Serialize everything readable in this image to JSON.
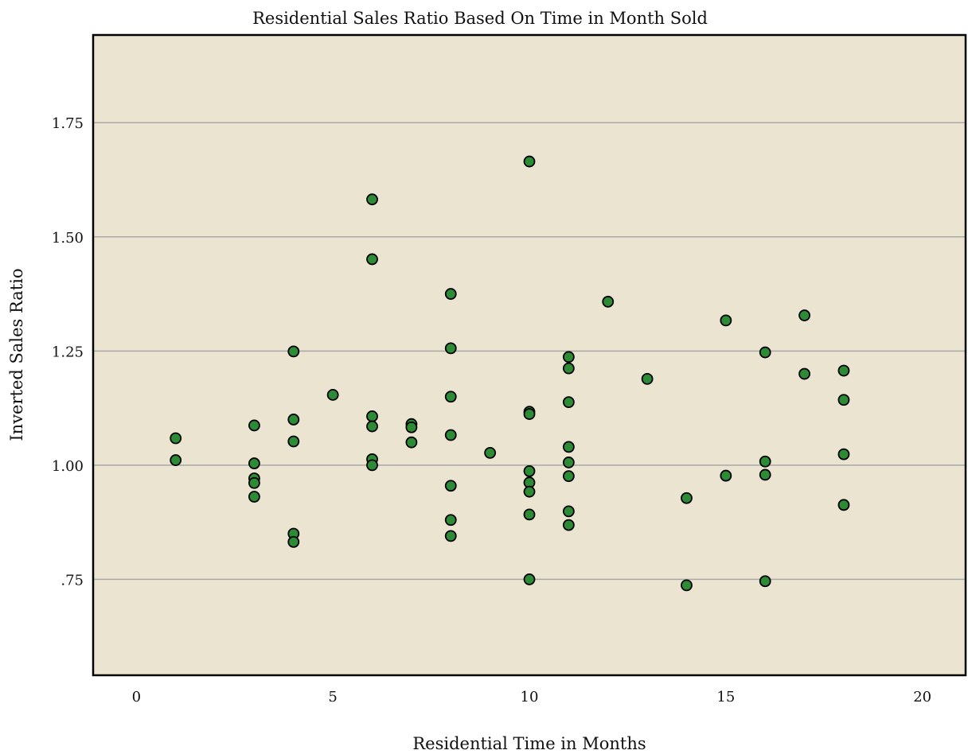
{
  "chart_data": {
    "type": "scatter",
    "title": "Residential Sales Ratio Based On Time in Month Sold",
    "xlabel": "Residential Time in Months",
    "ylabel": "Inverted Sales Ratio",
    "xlim": [
      -1.1,
      21.1
    ],
    "ylim": [
      0.54,
      1.942
    ],
    "x_ticks": [
      0,
      5,
      10,
      15,
      20
    ],
    "x_tick_labels": [
      "0",
      "5",
      "10",
      "15",
      "20"
    ],
    "y_ticks": [
      0.75,
      1.0,
      1.25,
      1.5,
      1.75
    ],
    "y_tick_labels": [
      ".75",
      "1.00",
      "1.25",
      "1.50",
      "1.75"
    ],
    "grid": "horizontal",
    "legend": "none",
    "colors": {
      "plot_background": "#ebe4d0",
      "point_fill": "#2e8b35",
      "point_stroke": "#000000",
      "grid": "#a8a8a8",
      "frame": "#000000"
    },
    "series": [
      {
        "points": [
          {
            "x": 1,
            "y": 1.059
          },
          {
            "x": 1,
            "y": 1.011
          },
          {
            "x": 3,
            "y": 1.087
          },
          {
            "x": 3,
            "y": 1.004
          },
          {
            "x": 3,
            "y": 0.971
          },
          {
            "x": 3,
            "y": 0.961
          },
          {
            "x": 3,
            "y": 0.931
          },
          {
            "x": 4,
            "y": 1.249
          },
          {
            "x": 4,
            "y": 1.1
          },
          {
            "x": 4,
            "y": 1.052
          },
          {
            "x": 4,
            "y": 0.85
          },
          {
            "x": 4,
            "y": 0.832
          },
          {
            "x": 5,
            "y": 1.154
          },
          {
            "x": 6,
            "y": 1.582
          },
          {
            "x": 6,
            "y": 1.451
          },
          {
            "x": 6,
            "y": 1.107
          },
          {
            "x": 6,
            "y": 1.085
          },
          {
            "x": 6,
            "y": 1.013
          },
          {
            "x": 6,
            "y": 1.0
          },
          {
            "x": 7,
            "y": 1.09
          },
          {
            "x": 7,
            "y": 1.083
          },
          {
            "x": 7,
            "y": 1.05
          },
          {
            "x": 8,
            "y": 1.375
          },
          {
            "x": 8,
            "y": 1.256
          },
          {
            "x": 8,
            "y": 1.15
          },
          {
            "x": 8,
            "y": 1.066
          },
          {
            "x": 8,
            "y": 0.955
          },
          {
            "x": 8,
            "y": 0.88
          },
          {
            "x": 8,
            "y": 0.845
          },
          {
            "x": 9,
            "y": 1.027
          },
          {
            "x": 10,
            "y": 1.665
          },
          {
            "x": 10,
            "y": 1.117
          },
          {
            "x": 10,
            "y": 1.112
          },
          {
            "x": 10,
            "y": 0.987
          },
          {
            "x": 10,
            "y": 0.962
          },
          {
            "x": 10,
            "y": 0.942
          },
          {
            "x": 10,
            "y": 0.892
          },
          {
            "x": 10,
            "y": 0.75
          },
          {
            "x": 11,
            "y": 1.237
          },
          {
            "x": 11,
            "y": 1.212
          },
          {
            "x": 11,
            "y": 1.138
          },
          {
            "x": 11,
            "y": 1.04
          },
          {
            "x": 11,
            "y": 1.006
          },
          {
            "x": 11,
            "y": 0.976
          },
          {
            "x": 11,
            "y": 0.899
          },
          {
            "x": 11,
            "y": 0.869
          },
          {
            "x": 12,
            "y": 1.358
          },
          {
            "x": 13,
            "y": 1.189
          },
          {
            "x": 14,
            "y": 0.928
          },
          {
            "x": 14,
            "y": 0.737
          },
          {
            "x": 15,
            "y": 1.317
          },
          {
            "x": 15,
            "y": 0.977
          },
          {
            "x": 16,
            "y": 1.247
          },
          {
            "x": 16,
            "y": 1.008
          },
          {
            "x": 16,
            "y": 0.979
          },
          {
            "x": 16,
            "y": 0.746
          },
          {
            "x": 17,
            "y": 1.328
          },
          {
            "x": 17,
            "y": 1.2
          },
          {
            "x": 18,
            "y": 1.207
          },
          {
            "x": 18,
            "y": 1.143
          },
          {
            "x": 18,
            "y": 1.024
          },
          {
            "x": 18,
            "y": 0.913
          }
        ]
      }
    ]
  }
}
